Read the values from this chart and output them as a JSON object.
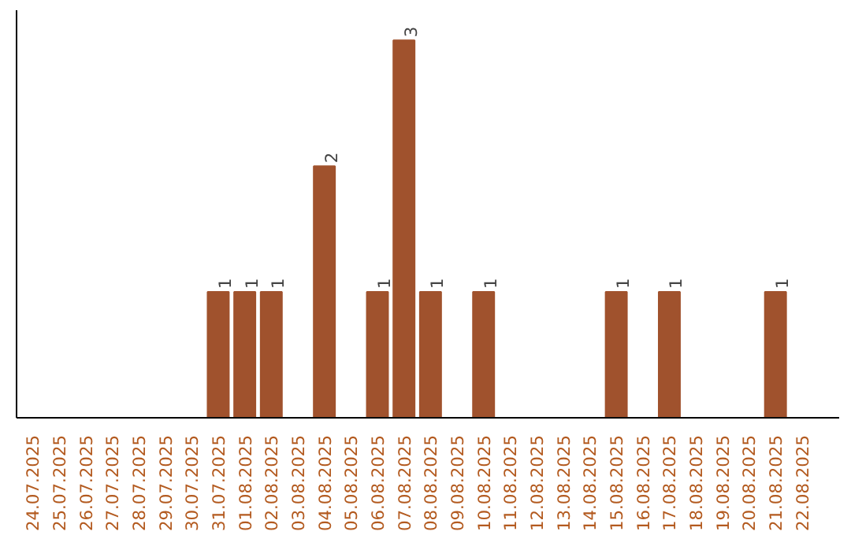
{
  "chart_data": {
    "type": "bar",
    "categories": [
      "24.07.2025",
      "25.07.2025",
      "26.07.2025",
      "27.07.2025",
      "28.07.2025",
      "29.07.2025",
      "30.07.2025",
      "31.07.2025",
      "01.08.2025",
      "02.08.2025",
      "03.08.2025",
      "04.08.2025",
      "05.08.2025",
      "06.08.2025",
      "07.08.2025",
      "08.08.2025",
      "09.08.2025",
      "10.08.2025",
      "11.08.2025",
      "12.08.2025",
      "13.08.2025",
      "14.08.2025",
      "15.08.2025",
      "16.08.2025",
      "17.08.2025",
      "18.08.2025",
      "19.08.2025",
      "20.08.2025",
      "21.08.2025",
      "22.08.2025"
    ],
    "values": [
      0,
      0,
      0,
      0,
      0,
      0,
      0,
      1,
      1,
      1,
      0,
      2,
      0,
      1,
      3,
      1,
      0,
      1,
      0,
      0,
      0,
      0,
      1,
      0,
      1,
      0,
      0,
      0,
      1,
      0
    ],
    "value_labels": [
      null,
      null,
      null,
      null,
      null,
      null,
      null,
      "1",
      "1",
      "1",
      null,
      "2",
      null,
      "1",
      "3",
      "1",
      null,
      "1",
      null,
      null,
      null,
      null,
      "1",
      null,
      "1",
      null,
      null,
      null,
      "1",
      null
    ],
    "color": "#a0522d",
    "tick_labels": "x",
    "grid": false
  }
}
